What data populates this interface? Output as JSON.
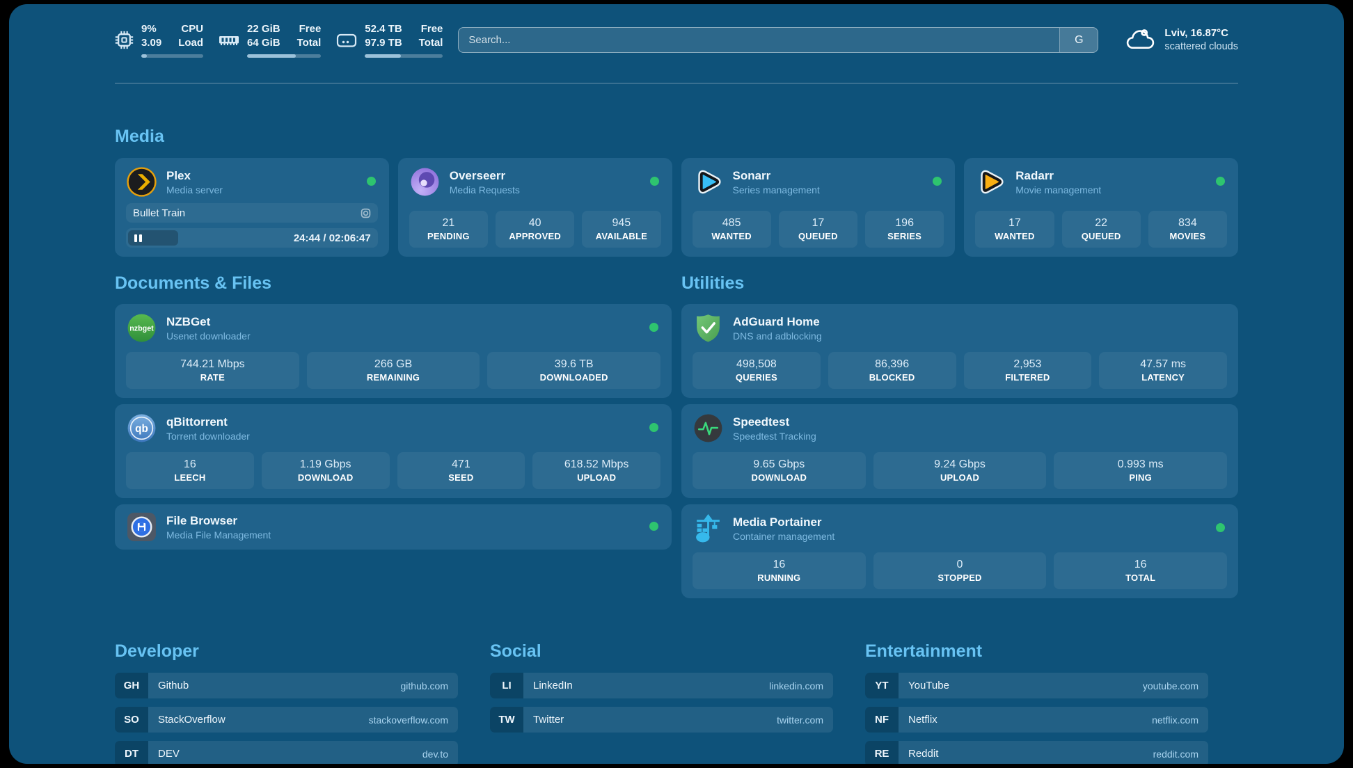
{
  "colors": {
    "background": "#0e527a",
    "card": "#20628b",
    "heading": "#68c3f3",
    "status_online": "#2ec46f",
    "link_domain": "#a9d4f0"
  },
  "topbar": {
    "system": [
      {
        "icon": "cpu-icon",
        "values": [
          "9%",
          "3.09"
        ],
        "labels": [
          "CPU",
          "Load"
        ],
        "progress_pct": 9
      },
      {
        "icon": "ram-icon",
        "values": [
          "22 GiB",
          "64 GiB"
        ],
        "labels": [
          "Free",
          "Total"
        ],
        "progress_pct": 66
      },
      {
        "icon": "storage-icon",
        "values": [
          "52.4 TB",
          "97.9 TB"
        ],
        "labels": [
          "Free",
          "Total"
        ],
        "progress_pct": 46
      }
    ],
    "search": {
      "placeholder": "Search...",
      "engine": "G"
    },
    "weather": {
      "title": "Lviv, 16.87°C",
      "condition": "scattered clouds"
    }
  },
  "icons": {
    "nzbget_label": "nzbget",
    "qbittorrent_label": "qb"
  },
  "media": {
    "title": "Media",
    "plex": {
      "name": "Plex",
      "subtitle": "Media server",
      "now_playing": {
        "title": "Bullet Train",
        "time": "24:44 / 02:06:47",
        "progress_pct": 20
      }
    },
    "overseerr": {
      "name": "Overseerr",
      "subtitle": "Media Requests",
      "stats": [
        {
          "value": "21",
          "label": "PENDING"
        },
        {
          "value": "40",
          "label": "APPROVED"
        },
        {
          "value": "945",
          "label": "AVAILABLE"
        }
      ]
    },
    "sonarr": {
      "name": "Sonarr",
      "subtitle": "Series management",
      "stats": [
        {
          "value": "485",
          "label": "WANTED"
        },
        {
          "value": "17",
          "label": "QUEUED"
        },
        {
          "value": "196",
          "label": "SERIES"
        }
      ]
    },
    "radarr": {
      "name": "Radarr",
      "subtitle": "Movie management",
      "stats": [
        {
          "value": "17",
          "label": "WANTED"
        },
        {
          "value": "22",
          "label": "QUEUED"
        },
        {
          "value": "834",
          "label": "MOVIES"
        }
      ]
    }
  },
  "documents": {
    "title": "Documents & Files",
    "nzbget": {
      "name": "NZBGet",
      "subtitle": "Usenet downloader",
      "stats": [
        {
          "value": "744.21 Mbps",
          "label": "RATE"
        },
        {
          "value": "266 GB",
          "label": "REMAINING"
        },
        {
          "value": "39.6 TB",
          "label": "DOWNLOADED"
        }
      ]
    },
    "qbittorrent": {
      "name": "qBittorrent",
      "subtitle": "Torrent downloader",
      "stats": [
        {
          "value": "16",
          "label": "LEECH"
        },
        {
          "value": "1.19 Gbps",
          "label": "DOWNLOAD"
        },
        {
          "value": "471",
          "label": "SEED"
        },
        {
          "value": "618.52 Mbps",
          "label": "UPLOAD"
        }
      ]
    },
    "filebrowser": {
      "name": "File Browser",
      "subtitle": "Media File Management"
    }
  },
  "utilities": {
    "title": "Utilities",
    "adguard": {
      "name": "AdGuard Home",
      "subtitle": "DNS and adblocking",
      "stats": [
        {
          "value": "498,508",
          "label": "QUERIES"
        },
        {
          "value": "86,396",
          "label": "BLOCKED"
        },
        {
          "value": "2,953",
          "label": "FILTERED"
        },
        {
          "value": "47.57 ms",
          "label": "LATENCY"
        }
      ]
    },
    "speedtest": {
      "name": "Speedtest",
      "subtitle": "Speedtest Tracking",
      "stats": [
        {
          "value": "9.65 Gbps",
          "label": "DOWNLOAD"
        },
        {
          "value": "9.24 Gbps",
          "label": "UPLOAD"
        },
        {
          "value": "0.993 ms",
          "label": "PING"
        }
      ]
    },
    "portainer": {
      "name": "Media Portainer",
      "subtitle": "Container management",
      "stats": [
        {
          "value": "16",
          "label": "RUNNING"
        },
        {
          "value": "0",
          "label": "STOPPED"
        },
        {
          "value": "16",
          "label": "TOTAL"
        }
      ]
    }
  },
  "bookmarks": {
    "developer": {
      "title": "Developer",
      "links": [
        {
          "abbr": "GH",
          "name": "Github",
          "domain": "github.com"
        },
        {
          "abbr": "SO",
          "name": "StackOverflow",
          "domain": "stackoverflow.com"
        },
        {
          "abbr": "DT",
          "name": "DEV",
          "domain": "dev.to"
        }
      ]
    },
    "social": {
      "title": "Social",
      "links": [
        {
          "abbr": "LI",
          "name": "LinkedIn",
          "domain": "linkedin.com"
        },
        {
          "abbr": "TW",
          "name": "Twitter",
          "domain": "twitter.com"
        }
      ]
    },
    "entertainment": {
      "title": "Entertainment",
      "links": [
        {
          "abbr": "YT",
          "name": "YouTube",
          "domain": "youtube.com"
        },
        {
          "abbr": "NF",
          "name": "Netflix",
          "domain": "netflix.com"
        },
        {
          "abbr": "RE",
          "name": "Reddit",
          "domain": "reddit.com"
        }
      ]
    }
  }
}
